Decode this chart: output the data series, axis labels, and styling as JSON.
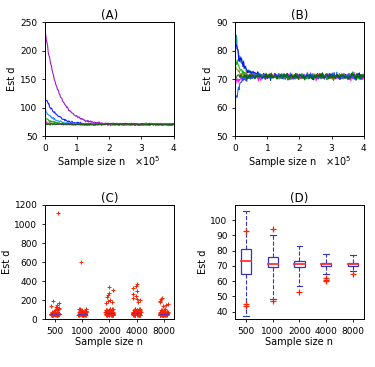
{
  "title_A": "(A)",
  "title_B": "(B)",
  "title_C": "(C)",
  "title_D": "(D)",
  "xlabel": "Sample size n",
  "ylabel": "Est d",
  "xlim_AB": [
    0,
    400000
  ],
  "xticks_AB": [
    0,
    100000,
    200000,
    300000,
    400000
  ],
  "xtick_labels_AB": [
    "0",
    "1",
    "2",
    "3",
    "4"
  ],
  "ylim_A": [
    50,
    250
  ],
  "yticks_A": [
    50,
    100,
    150,
    200,
    250
  ],
  "ylim_B": [
    50,
    90
  ],
  "yticks_B": [
    50,
    60,
    70,
    80,
    90
  ],
  "categories_CD": [
    "500",
    "1000",
    "2000",
    "4000",
    "8000"
  ],
  "ylim_C": [
    0,
    1200
  ],
  "yticks_C": [
    0,
    200,
    400,
    600,
    800,
    1000,
    1200
  ],
  "ylim_D": [
    35,
    110
  ],
  "yticks_D": [
    40,
    50,
    60,
    70,
    80,
    90,
    100
  ],
  "line_colors_A": [
    "#9900CC",
    "#0000FF",
    "#0088FF",
    "#009900",
    "#888800",
    "#FF00FF",
    "#006600"
  ],
  "line_colors_B": [
    "#008888",
    "#0000FF",
    "#00AA00",
    "#888800",
    "#FF00FF",
    "#0055FF",
    "#006600"
  ],
  "box_color_C_fill": "#8855AA",
  "box_color_C_edge": "#6633AA",
  "box_color_D": "#3333CC",
  "scatter_color": "#FF2200",
  "median_color_D": "#FF3333",
  "background": "#ffffff"
}
